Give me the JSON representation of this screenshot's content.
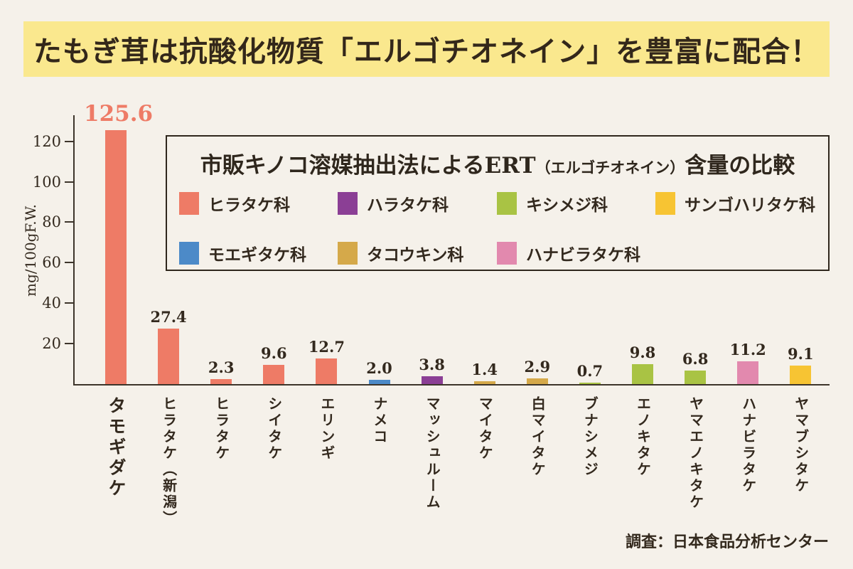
{
  "banner": {
    "title": "たもぎ茸は抗酸化物質「エルゴチオネイン」を豊富に配合！"
  },
  "legend": {
    "title_main": "市販キノコ溶媒抽出法によるERT",
    "title_small": "（エルゴチオネイン）",
    "title_tail": "含量の比較",
    "items": [
      {
        "label": "ヒラタケ科",
        "color": "#EE7B66"
      },
      {
        "label": "ハラタケ科",
        "color": "#8B3F95"
      },
      {
        "label": "キシメジ科",
        "color": "#A9C344"
      },
      {
        "label": "サンゴハリタケ科",
        "color": "#F7C433"
      },
      {
        "label": "モエギタケ科",
        "color": "#4C8AC8"
      },
      {
        "label": "タコウキン科",
        "color": "#D5A94A"
      },
      {
        "label": "ハナビラタケ科",
        "color": "#E289AE"
      }
    ]
  },
  "chart_data": {
    "type": "bar",
    "title": "市販キノコ溶媒抽出法によるERT（エルゴチオネイン）含量の比較",
    "xlabel": "",
    "ylabel": "mg/100gF.W.",
    "ylim": [
      0,
      130
    ],
    "yticks": [
      20,
      40,
      60,
      80,
      100,
      120
    ],
    "grid": false,
    "legend_position": "upper-right-box",
    "categories": [
      "タモギダケ",
      "ヒラタケ（新潟）",
      "ヒラタケ",
      "シイタケ",
      "エリンギ",
      "ナメコ",
      "マッシュルーム",
      "マイタケ",
      "白マイタケ",
      "ブナシメジ",
      "エノキタケ",
      "ヤマエノキタケ",
      "ハナビラタケ",
      "ヤマブシタケ"
    ],
    "values": [
      125.6,
      27.4,
      2.3,
      9.6,
      12.7,
      2.0,
      3.8,
      1.4,
      2.9,
      0.7,
      9.8,
      6.8,
      11.2,
      9.1
    ],
    "value_labels": [
      "125.6",
      "27.4",
      "2.3",
      "9.6",
      "12.7",
      "2.0",
      "3.8",
      "1.4",
      "2.9",
      "0.7",
      "9.8",
      "6.8",
      "11.2",
      "9.1"
    ],
    "bar_families": [
      "ヒラタケ科",
      "ヒラタケ科",
      "ヒラタケ科",
      "ヒラタケ科",
      "ヒラタケ科",
      "モエギタケ科",
      "ハラタケ科",
      "タコウキン科",
      "タコウキン科",
      "キシメジ科",
      "キシメジ科",
      "キシメジ科",
      "ハナビラタケ科",
      "サンゴハリタケ科"
    ],
    "highlight_index": 0,
    "highlight_color": "#EE7B66"
  },
  "source": "調査：日本食品分析センター"
}
